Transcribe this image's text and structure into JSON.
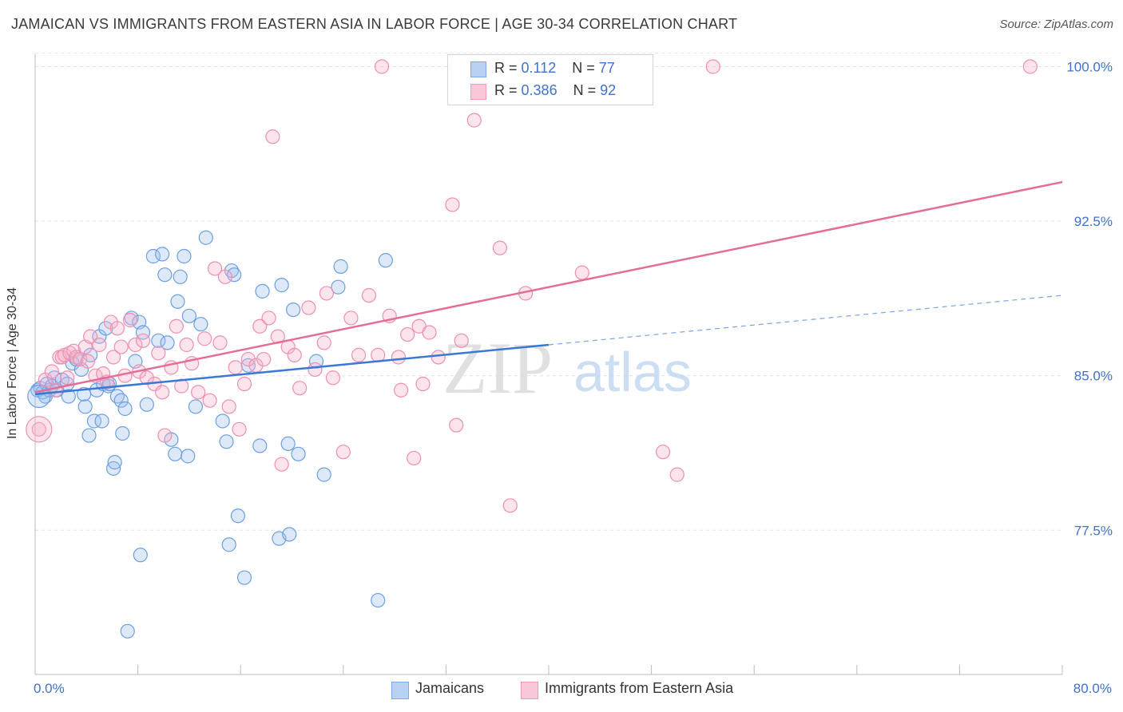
{
  "title": "JAMAICAN VS IMMIGRANTS FROM EASTERN ASIA IN LABOR FORCE | AGE 30-34 CORRELATION CHART",
  "source": "Source: ZipAtlas.com",
  "watermark": {
    "zip": "ZIP",
    "atlas": "atlas"
  },
  "legend": {
    "r_label": "R =",
    "n_label": "N =",
    "series": [
      {
        "r": "0.112",
        "n": "77"
      },
      {
        "r": "0.386",
        "n": "92"
      }
    ]
  },
  "bottom_legend": [
    "Jamaicans",
    "Immigrants from Eastern Asia"
  ],
  "chart_data": {
    "type": "scatter",
    "title": "JAMAICAN VS IMMIGRANTS FROM EASTERN ASIA IN LABOR FORCE | AGE 30-34 CORRELATION CHART",
    "ylabel": "In Labor Force | Age 30-34",
    "xlabel": "",
    "xlim": [
      0,
      80
    ],
    "ylim": [
      70.5,
      100.6
    ],
    "x_tick_labels": [
      "0.0%",
      "80.0%"
    ],
    "y_ticks": [
      77.5,
      85.0,
      92.5,
      100.0
    ],
    "y_tick_labels": [
      "77.5%",
      "85.0%",
      "92.5%",
      "100.0%"
    ],
    "grid": true,
    "legend_position": "top-center",
    "colors": {
      "Jamaicans": "#7aaae8",
      "Immigrants from Eastern Asia": "#f29ab8",
      "Jamaicans_line": "#3a78d4",
      "Immigrants_line": "#e36d97"
    },
    "series": [
      {
        "name": "Jamaicans",
        "trend": {
          "x0": 0.0,
          "y0": 84.1,
          "x1": 40.0,
          "y1": 86.5,
          "dashed_to_x": 80.0,
          "dashed_to_y": 88.9
        },
        "points": [
          [
            0.2,
            84.3
          ],
          [
            0.4,
            84.4
          ],
          [
            0.6,
            84.2
          ],
          [
            0.8,
            84.0
          ],
          [
            0.9,
            84.6
          ],
          [
            1.1,
            84.3
          ],
          [
            1.3,
            84.5
          ],
          [
            1.5,
            84.9
          ],
          [
            1.7,
            84.3
          ],
          [
            2.1,
            84.8
          ],
          [
            2.5,
            84.6
          ],
          [
            2.6,
            84.0
          ],
          [
            2.9,
            85.6
          ],
          [
            3.2,
            85.8
          ],
          [
            3.6,
            85.3
          ],
          [
            3.8,
            84.1
          ],
          [
            3.9,
            83.5
          ],
          [
            4.2,
            82.1
          ],
          [
            4.3,
            86.0
          ],
          [
            4.6,
            82.8
          ],
          [
            4.8,
            84.3
          ],
          [
            5.0,
            86.9
          ],
          [
            5.2,
            82.8
          ],
          [
            5.3,
            84.6
          ],
          [
            5.5,
            87.3
          ],
          [
            5.7,
            84.5
          ],
          [
            5.8,
            84.6
          ],
          [
            6.1,
            80.5
          ],
          [
            6.2,
            80.8
          ],
          [
            6.4,
            84.0
          ],
          [
            6.7,
            83.8
          ],
          [
            6.8,
            82.2
          ],
          [
            7.0,
            83.4
          ],
          [
            7.2,
            72.6
          ],
          [
            7.5,
            87.8
          ],
          [
            7.8,
            85.7
          ],
          [
            8.1,
            87.6
          ],
          [
            8.2,
            76.3
          ],
          [
            8.4,
            87.1
          ],
          [
            8.7,
            83.6
          ],
          [
            9.2,
            90.8
          ],
          [
            9.6,
            86.7
          ],
          [
            9.9,
            90.9
          ],
          [
            10.1,
            89.9
          ],
          [
            10.3,
            86.6
          ],
          [
            10.6,
            81.9
          ],
          [
            10.9,
            81.2
          ],
          [
            11.1,
            88.6
          ],
          [
            11.3,
            89.8
          ],
          [
            11.6,
            90.8
          ],
          [
            11.9,
            81.1
          ],
          [
            12.0,
            87.9
          ],
          [
            12.5,
            83.5
          ],
          [
            12.9,
            87.5
          ],
          [
            13.3,
            91.7
          ],
          [
            14.6,
            82.8
          ],
          [
            14.9,
            81.8
          ],
          [
            15.1,
            76.8
          ],
          [
            15.3,
            90.1
          ],
          [
            15.5,
            89.9
          ],
          [
            15.8,
            78.2
          ],
          [
            16.3,
            75.2
          ],
          [
            16.6,
            85.5
          ],
          [
            17.5,
            81.6
          ],
          [
            17.7,
            89.1
          ],
          [
            19.0,
            77.1
          ],
          [
            19.2,
            89.4
          ],
          [
            19.7,
            81.7
          ],
          [
            19.8,
            77.3
          ],
          [
            20.1,
            88.2
          ],
          [
            20.5,
            81.2
          ],
          [
            21.9,
            85.7
          ],
          [
            22.5,
            80.2
          ],
          [
            23.6,
            89.3
          ],
          [
            23.8,
            90.3
          ],
          [
            26.7,
            74.1
          ],
          [
            27.3,
            90.6
          ]
        ]
      },
      {
        "name": "Immigrants from Eastern Asia",
        "trend": {
          "x0": 0.0,
          "y0": 84.2,
          "x1": 80.0,
          "y1": 94.4
        },
        "points": [
          [
            0.3,
            82.4
          ],
          [
            0.8,
            84.8
          ],
          [
            1.3,
            85.2
          ],
          [
            1.6,
            84.3
          ],
          [
            1.9,
            85.9
          ],
          [
            2.1,
            85.9
          ],
          [
            2.3,
            86.0
          ],
          [
            2.5,
            84.9
          ],
          [
            2.7,
            86.1
          ],
          [
            3.0,
            86.2
          ],
          [
            3.2,
            85.9
          ],
          [
            3.5,
            85.8
          ],
          [
            3.9,
            86.4
          ],
          [
            4.1,
            85.7
          ],
          [
            4.3,
            86.9
          ],
          [
            4.7,
            85.0
          ],
          [
            5.0,
            86.5
          ],
          [
            5.3,
            85.1
          ],
          [
            5.6,
            84.7
          ],
          [
            5.9,
            87.6
          ],
          [
            6.1,
            85.9
          ],
          [
            6.4,
            87.3
          ],
          [
            6.7,
            86.4
          ],
          [
            7.0,
            85.0
          ],
          [
            7.4,
            87.7
          ],
          [
            7.8,
            86.5
          ],
          [
            8.1,
            85.2
          ],
          [
            8.4,
            86.7
          ],
          [
            8.7,
            84.9
          ],
          [
            9.3,
            84.6
          ],
          [
            9.6,
            86.1
          ],
          [
            9.9,
            84.2
          ],
          [
            10.1,
            82.1
          ],
          [
            10.6,
            85.4
          ],
          [
            11.0,
            87.4
          ],
          [
            11.4,
            84.5
          ],
          [
            11.8,
            86.5
          ],
          [
            12.2,
            85.6
          ],
          [
            12.7,
            84.2
          ],
          [
            13.2,
            86.8
          ],
          [
            13.6,
            83.8
          ],
          [
            14.0,
            90.2
          ],
          [
            14.4,
            86.6
          ],
          [
            14.8,
            89.8
          ],
          [
            15.1,
            83.5
          ],
          [
            15.6,
            85.4
          ],
          [
            15.9,
            82.4
          ],
          [
            16.3,
            84.6
          ],
          [
            16.6,
            85.8
          ],
          [
            17.2,
            85.5
          ],
          [
            17.5,
            87.4
          ],
          [
            17.8,
            85.8
          ],
          [
            18.2,
            87.8
          ],
          [
            18.5,
            96.6
          ],
          [
            18.9,
            86.9
          ],
          [
            19.2,
            80.7
          ],
          [
            19.7,
            86.4
          ],
          [
            20.2,
            86.0
          ],
          [
            20.6,
            84.4
          ],
          [
            21.3,
            88.3
          ],
          [
            21.8,
            85.3
          ],
          [
            22.5,
            86.6
          ],
          [
            22.7,
            89.0
          ],
          [
            23.2,
            84.9
          ],
          [
            24.0,
            81.3
          ],
          [
            24.6,
            87.8
          ],
          [
            25.2,
            86.0
          ],
          [
            26.0,
            88.9
          ],
          [
            26.7,
            86.0
          ],
          [
            27.0,
            100.0
          ],
          [
            27.6,
            87.9
          ],
          [
            28.3,
            85.9
          ],
          [
            28.5,
            84.3
          ],
          [
            29.0,
            87.0
          ],
          [
            29.5,
            81.0
          ],
          [
            29.9,
            87.4
          ],
          [
            30.2,
            84.6
          ],
          [
            30.7,
            87.1
          ],
          [
            31.4,
            85.9
          ],
          [
            32.5,
            93.3
          ],
          [
            32.8,
            82.6
          ],
          [
            33.2,
            86.7
          ],
          [
            34.2,
            97.4
          ],
          [
            34.4,
            100.0
          ],
          [
            36.2,
            91.2
          ],
          [
            37.0,
            78.7
          ],
          [
            38.2,
            89.0
          ],
          [
            42.6,
            90.0
          ],
          [
            48.9,
            81.3
          ],
          [
            50.0,
            80.2
          ],
          [
            52.8,
            100.0
          ],
          [
            77.5,
            100.0
          ]
        ]
      }
    ]
  }
}
